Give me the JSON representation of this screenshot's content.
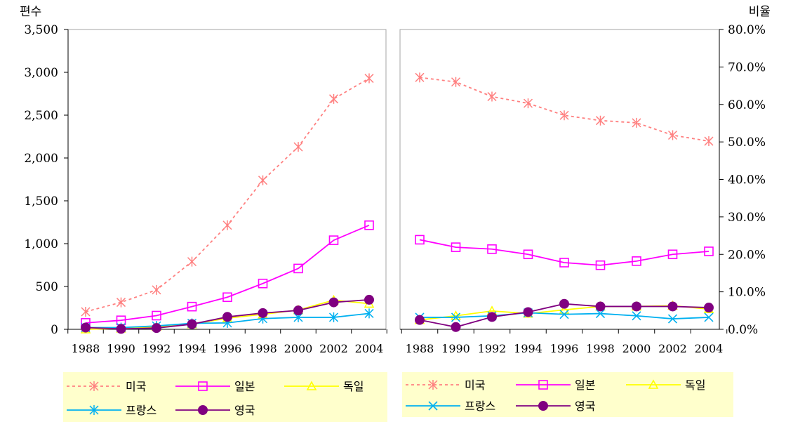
{
  "chart_data": [
    {
      "type": "line",
      "ylabel": "편수",
      "ylim": [
        0,
        3500
      ],
      "yticks": [
        "0",
        "500",
        "1,000",
        "1,500",
        "2,000",
        "2,500",
        "3,000",
        "3,500"
      ],
      "ytick_values": [
        0,
        500,
        1000,
        1500,
        2000,
        2500,
        3000,
        3500
      ],
      "categories": [
        "1988",
        "1990",
        "1992",
        "1994",
        "1996",
        "1998",
        "2000",
        "2002",
        "2004"
      ],
      "grid": false,
      "legend_position": "bottom",
      "series": [
        {
          "name": "미국",
          "color": "#FF8080",
          "marker": "asterisk",
          "dashed": true,
          "values": [
            205,
            315,
            460,
            790,
            1215,
            1740,
            2130,
            2690,
            2930
          ]
        },
        {
          "name": "일본",
          "color": "#FF00FF",
          "marker": "square",
          "dashed": false,
          "values": [
            75,
            105,
            160,
            265,
            375,
            535,
            710,
            1040,
            1215
          ]
        },
        {
          "name": "독일",
          "color": "#FFFF00",
          "marker": "triangle",
          "dashed": false,
          "values": [
            0,
            10,
            30,
            60,
            130,
            175,
            225,
            340,
            300
          ]
        },
        {
          "name": "프랑스",
          "color": "#00B0F0",
          "marker": "asterisk",
          "dashed": false,
          "values": [
            20,
            20,
            40,
            70,
            75,
            125,
            140,
            140,
            185
          ]
        },
        {
          "name": "영국",
          "color": "#800080",
          "marker": "circle",
          "dashed": false,
          "values": [
            20,
            5,
            15,
            60,
            145,
            190,
            220,
            315,
            345
          ]
        }
      ]
    },
    {
      "type": "line",
      "ylabel": "비율",
      "ylim": [
        0,
        80
      ],
      "yticks": [
        "0.0%",
        "10.0%",
        "20.0%",
        "30.0%",
        "40.0%",
        "50.0%",
        "60.0%",
        "70.0%",
        "80.0%"
      ],
      "ytick_values": [
        0,
        10,
        20,
        30,
        40,
        50,
        60,
        70,
        80
      ],
      "categories": [
        "1988",
        "1990",
        "1992",
        "1994",
        "1996",
        "1998",
        "2000",
        "2002",
        "2004"
      ],
      "grid": false,
      "legend_position": "bottom",
      "series": [
        {
          "name": "미국",
          "color": "#FF8080",
          "marker": "asterisk",
          "dashed": true,
          "values": [
            67.2,
            66.0,
            62.1,
            60.3,
            57.1,
            55.7,
            55.1,
            51.8,
            50.2
          ]
        },
        {
          "name": "일본",
          "color": "#FF00FF",
          "marker": "square",
          "dashed": false,
          "values": [
            23.9,
            21.9,
            21.4,
            20.0,
            17.8,
            17.1,
            18.2,
            20.0,
            20.8
          ]
        },
        {
          "name": "독일",
          "color": "#FFFF00",
          "marker": "triangle",
          "dashed": false,
          "values": [
            2.5,
            3.6,
            4.9,
            4.2,
            5.2,
            6.1,
            6.1,
            6.3,
            5.4
          ]
        },
        {
          "name": "프랑스",
          "color": "#00B0F0",
          "marker": "x",
          "dashed": false,
          "values": [
            3.2,
            3.2,
            3.6,
            4.4,
            4.0,
            4.2,
            3.6,
            2.8,
            3.2
          ]
        },
        {
          "name": "영국",
          "color": "#800080",
          "marker": "circle",
          "dashed": false,
          "values": [
            2.5,
            0.6,
            3.3,
            4.6,
            6.8,
            6.1,
            6.1,
            6.1,
            5.8
          ]
        }
      ]
    }
  ]
}
